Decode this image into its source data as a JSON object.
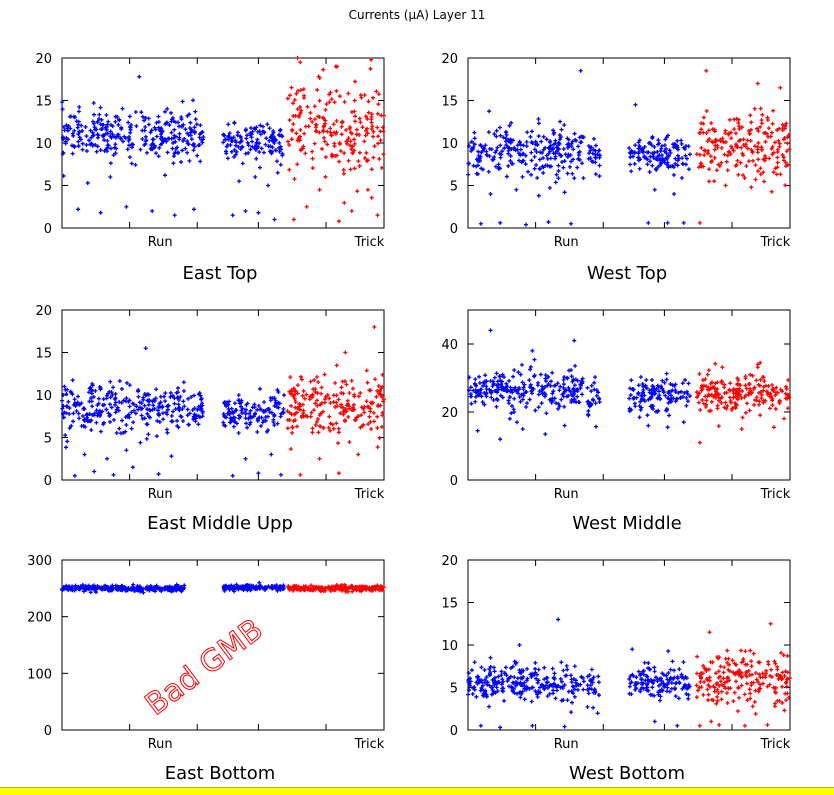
{
  "figure": {
    "title": "Currents (μA) Layer 11"
  },
  "colors": {
    "run": "#0000ff",
    "trick": "#ff0000",
    "axis": "#000000",
    "footer_bar": "#ffff00"
  },
  "chart_data": [
    {
      "type": "scatter",
      "title": "East Top",
      "xticks": [
        "Run",
        "Trick"
      ],
      "ylim": [
        0,
        20
      ],
      "yticks": [
        0,
        5,
        10,
        15,
        20
      ],
      "series": [
        {
          "name": "Run",
          "color": "#0000ff",
          "segments": [
            {
              "x": [
                0.0,
                0.44
              ],
              "center": 11.0,
              "spread": 1.4,
              "outliers": [
                [
                  0.05,
                  2.2
                ],
                [
                  0.12,
                  1.8
                ],
                [
                  0.2,
                  2.5
                ],
                [
                  0.28,
                  2.0
                ],
                [
                  0.35,
                  1.5
                ],
                [
                  0.41,
                  2.2
                ],
                [
                  0.24,
                  17.8
                ],
                [
                  0.15,
                  6.0
                ],
                [
                  0.08,
                  5.3
                ],
                [
                  0.32,
                  6.2
                ]
              ]
            },
            {
              "x": [
                0.5,
                0.69
              ],
              "center": 10.0,
              "spread": 1.0,
              "outliers": [
                [
                  0.53,
                  1.5
                ],
                [
                  0.57,
                  2.0
                ],
                [
                  0.61,
                  1.8
                ],
                [
                  0.66,
                  1.0
                ],
                [
                  0.55,
                  5.5
                ],
                [
                  0.6,
                  6.0
                ],
                [
                  0.64,
                  5.0
                ],
                [
                  0.67,
                  6.5
                ]
              ]
            }
          ]
        },
        {
          "name": "Trick",
          "color": "#ff0000",
          "segments": [
            {
              "x": [
                0.7,
                1.0
              ],
              "center": 11.5,
              "spread": 3.0,
              "outliers": [
                [
                  0.72,
                  1.0
                ],
                [
                  0.76,
                  2.5
                ],
                [
                  0.8,
                  4.5
                ],
                [
                  0.86,
                  0.8
                ],
                [
                  0.9,
                  2.0
                ],
                [
                  0.95,
                  4.5
                ],
                [
                  0.98,
                  1.5
                ],
                [
                  0.74,
                  19.5
                ],
                [
                  0.85,
                  19.0
                ],
                [
                  0.96,
                  19.8
                ]
              ]
            }
          ]
        }
      ]
    },
    {
      "type": "scatter",
      "title": "West Top",
      "xticks": [
        "Run",
        "Trick"
      ],
      "ylim": [
        0,
        20
      ],
      "yticks": [
        0,
        5,
        10,
        15,
        20
      ],
      "series": [
        {
          "name": "Run",
          "color": "#0000ff",
          "segments": [
            {
              "x": [
                0.0,
                0.36
              ],
              "center": 9.0,
              "spread": 1.5,
              "outliers": [
                [
                  0.04,
                  0.5
                ],
                [
                  0.1,
                  0.6
                ],
                [
                  0.18,
                  0.4
                ],
                [
                  0.25,
                  0.7
                ],
                [
                  0.32,
                  0.5
                ],
                [
                  0.07,
                  4.0
                ],
                [
                  0.15,
                  4.5
                ],
                [
                  0.22,
                  3.8
                ],
                [
                  0.3,
                  4.2
                ],
                [
                  0.35,
                  18.5
                ]
              ]
            },
            {
              "x": [
                0.37,
                0.41
              ],
              "center": 8.5,
              "spread": 1.2,
              "outliers": []
            },
            {
              "x": [
                0.5,
                0.69
              ],
              "center": 8.5,
              "spread": 1.0,
              "outliers": [
                [
                  0.52,
                  14.5
                ],
                [
                  0.56,
                  0.6
                ],
                [
                  0.62,
                  0.6
                ],
                [
                  0.67,
                  0.6
                ],
                [
                  0.58,
                  4.5
                ],
                [
                  0.64,
                  4.0
                ]
              ]
            }
          ]
        },
        {
          "name": "Trick",
          "color": "#ff0000",
          "segments": [
            {
              "x": [
                0.71,
                1.0
              ],
              "center": 9.5,
              "spread": 2.0,
              "outliers": [
                [
                  0.72,
                  0.6
                ],
                [
                  0.74,
                  18.5
                ],
                [
                  0.9,
                  17.0
                ],
                [
                  0.97,
                  16.5
                ],
                [
                  0.8,
                  5.0
                ],
                [
                  0.88,
                  4.8
                ]
              ]
            }
          ]
        }
      ]
    },
    {
      "type": "scatter",
      "title": "East Middle Upp",
      "xticks": [
        "Run",
        "Trick"
      ],
      "ylim": [
        0,
        20
      ],
      "yticks": [
        0,
        5,
        10,
        15,
        20
      ],
      "series": [
        {
          "name": "Run",
          "color": "#0000ff",
          "segments": [
            {
              "x": [
                0.0,
                0.38
              ],
              "center": 8.5,
              "spread": 1.4,
              "outliers": [
                [
                  0.04,
                  0.5
                ],
                [
                  0.1,
                  1.0
                ],
                [
                  0.16,
                  0.6
                ],
                [
                  0.22,
                  1.5
                ],
                [
                  0.3,
                  0.7
                ],
                [
                  0.07,
                  3.0
                ],
                [
                  0.14,
                  2.5
                ],
                [
                  0.2,
                  3.5
                ],
                [
                  0.26,
                  15.5
                ],
                [
                  0.34,
                  2.8
                ]
              ]
            },
            {
              "x": [
                0.39,
                0.44
              ],
              "center": 8.0,
              "spread": 1.2,
              "outliers": []
            },
            {
              "x": [
                0.5,
                0.69
              ],
              "center": 8.0,
              "spread": 1.0,
              "outliers": [
                [
                  0.53,
                  0.5
                ],
                [
                  0.57,
                  2.5
                ],
                [
                  0.61,
                  0.8
                ],
                [
                  0.65,
                  3.0
                ],
                [
                  0.68,
                  0.6
                ]
              ]
            }
          ]
        },
        {
          "name": "Trick",
          "color": "#ff0000",
          "segments": [
            {
              "x": [
                0.7,
                1.0
              ],
              "center": 8.5,
              "spread": 2.0,
              "outliers": [
                [
                  0.74,
                  0.6
                ],
                [
                  0.8,
                  2.5
                ],
                [
                  0.86,
                  0.8
                ],
                [
                  0.92,
                  3.0
                ],
                [
                  0.97,
                  18.0
                ],
                [
                  0.88,
                  15.0
                ]
              ]
            }
          ]
        }
      ]
    },
    {
      "type": "scatter",
      "title": "West Middle",
      "xticks": [
        "Run",
        "Trick"
      ],
      "ylim": [
        0,
        50
      ],
      "yticks": [
        0,
        20,
        40
      ],
      "series": [
        {
          "name": "Run",
          "color": "#0000ff",
          "segments": [
            {
              "x": [
                0.0,
                0.36
              ],
              "center": 26.0,
              "spread": 3.0,
              "outliers": [
                [
                  0.03,
                  14.5
                ],
                [
                  0.1,
                  12.0
                ],
                [
                  0.17,
                  15.0
                ],
                [
                  0.24,
                  13.5
                ],
                [
                  0.3,
                  16.0
                ],
                [
                  0.07,
                  44.0
                ],
                [
                  0.2,
                  38.0
                ],
                [
                  0.33,
                  41.0
                ],
                [
                  0.13,
                  18.0
                ]
              ]
            },
            {
              "x": [
                0.37,
                0.41
              ],
              "center": 24.0,
              "spread": 2.5,
              "outliers": []
            },
            {
              "x": [
                0.5,
                0.69
              ],
              "center": 25.0,
              "spread": 2.5,
              "outliers": [
                [
                  0.56,
                  16.0
                ],
                [
                  0.62,
                  15.5
                ],
                [
                  0.67,
                  17.0
                ]
              ]
            }
          ]
        },
        {
          "name": "Trick",
          "color": "#ff0000",
          "segments": [
            {
              "x": [
                0.71,
                1.0
              ],
              "center": 26.0,
              "spread": 3.0,
              "outliers": [
                [
                  0.72,
                  11.0
                ],
                [
                  0.85,
                  15.0
                ],
                [
                  0.95,
                  15.5
                ],
                [
                  0.9,
                  34.0
                ]
              ]
            }
          ]
        }
      ]
    },
    {
      "type": "scatter",
      "title": "East Bottom",
      "annotation": "Bad GMB",
      "xticks": [
        "Run",
        "Trick"
      ],
      "ylim": [
        0,
        300
      ],
      "yticks": [
        0,
        100,
        200,
        300
      ],
      "series": [
        {
          "name": "Run",
          "color": "#0000ff",
          "segments": [
            {
              "x": [
                0.0,
                0.38
              ],
              "center": 250.0,
              "spread": 2.5,
              "outliers": []
            },
            {
              "x": [
                0.5,
                0.69
              ],
              "center": 251.0,
              "spread": 2.5,
              "outliers": []
            }
          ]
        },
        {
          "name": "Trick",
          "color": "#ff0000",
          "segments": [
            {
              "x": [
                0.7,
                1.0
              ],
              "center": 250.0,
              "spread": 2.5,
              "outliers": []
            }
          ]
        }
      ]
    },
    {
      "type": "scatter",
      "title": "West Bottom",
      "xticks": [
        "Run",
        "Trick"
      ],
      "ylim": [
        0,
        20
      ],
      "yticks": [
        0,
        5,
        10,
        15,
        20
      ],
      "series": [
        {
          "name": "Run",
          "color": "#0000ff",
          "segments": [
            {
              "x": [
                0.0,
                0.36
              ],
              "center": 5.5,
              "spread": 1.1,
              "outliers": [
                [
                  0.04,
                  0.5
                ],
                [
                  0.1,
                  0.3
                ],
                [
                  0.2,
                  0.5
                ],
                [
                  0.3,
                  0.4
                ],
                [
                  0.16,
                  10.0
                ],
                [
                  0.28,
                  13.0
                ],
                [
                  0.07,
                  8.5
                ]
              ]
            },
            {
              "x": [
                0.37,
                0.41
              ],
              "center": 5.0,
              "spread": 1.0,
              "outliers": []
            },
            {
              "x": [
                0.5,
                0.69
              ],
              "center": 5.5,
              "spread": 1.0,
              "outliers": [
                [
                  0.51,
                  9.5
                ],
                [
                  0.58,
                  1.0
                ],
                [
                  0.65,
                  0.5
                ]
              ]
            }
          ]
        },
        {
          "name": "Trick",
          "color": "#ff0000",
          "segments": [
            {
              "x": [
                0.71,
                1.0
              ],
              "center": 6.0,
              "spread": 1.6,
              "outliers": [
                [
                  0.72,
                  0.5
                ],
                [
                  0.78,
                  0.6
                ],
                [
                  0.86,
                  0.5
                ],
                [
                  0.93,
                  0.6
                ],
                [
                  0.75,
                  11.5
                ],
                [
                  0.94,
                  12.5
                ]
              ]
            }
          ]
        }
      ]
    }
  ]
}
